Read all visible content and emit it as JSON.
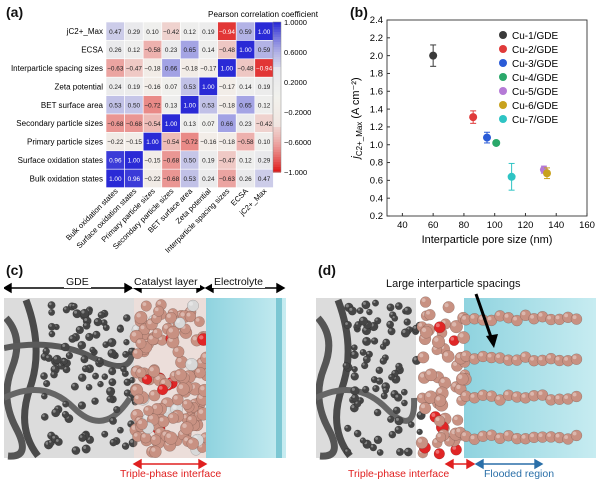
{
  "panels": {
    "a": "(a)",
    "b": "(b)",
    "c": "(c)",
    "d": "(d)"
  },
  "chart_data": [
    {
      "type": "heatmap",
      "title": "Pearson correlation coefficient",
      "row_labels": [
        "jC2+_Max",
        "ECSA",
        "Interparticle spacing sizes",
        "Zeta potential",
        "BET surface area",
        "Secondary particle sizes",
        "Primary particle sizes",
        "Surface oxidation states",
        "Bulk oxidation states"
      ],
      "col_labels": [
        "Bulk oxidation states",
        "Surface oxidation states",
        "Primary particle sizes",
        "Secondary particle sizes",
        "BET surface area",
        "Zeta potential",
        "Interparticle spacing sizes",
        "ECSA",
        "jC2+_Max"
      ],
      "values": [
        [
          0.47,
          0.29,
          0.1,
          -0.42,
          0.12,
          0.19,
          -0.94,
          0.59,
          1.0
        ],
        [
          0.26,
          0.12,
          -0.58,
          0.23,
          0.65,
          0.14,
          -0.48,
          1.0,
          0.59
        ],
        [
          -0.63,
          -0.47,
          -0.18,
          0.66,
          -0.18,
          -0.17,
          1.0,
          -0.48,
          -0.94
        ],
        [
          0.24,
          0.19,
          -0.16,
          0.07,
          0.53,
          1.0,
          -0.17,
          0.14,
          0.19
        ],
        [
          0.53,
          0.5,
          -0.72,
          0.13,
          1.0,
          0.53,
          -0.18,
          0.65,
          0.12
        ],
        [
          -0.68,
          -0.68,
          -0.54,
          1.0,
          0.13,
          0.07,
          0.66,
          0.23,
          -0.42
        ],
        [
          -0.22,
          -0.15,
          1.0,
          -0.54,
          -0.72,
          -0.16,
          -0.18,
          -0.58,
          0.1
        ],
        [
          0.96,
          1.0,
          -0.15,
          -0.68,
          0.5,
          0.19,
          -0.47,
          0.12,
          0.29
        ],
        [
          1.0,
          0.96,
          -0.22,
          -0.68,
          0.53,
          0.24,
          -0.63,
          0.26,
          0.47
        ]
      ],
      "colorbar_ticks": [
        "1.0000",
        "0.6000",
        "0.2000",
        "−0.2000",
        "−0.6000",
        "−1.000"
      ],
      "colors": {
        "positive": "#2a2ad6",
        "negative": "#e01b1b",
        "neutral": "#f2f2ed"
      }
    },
    {
      "type": "scatter",
      "xlabel": "Interparticle pore size (nm)",
      "ylabel_main": "j",
      "ylabel_sub": "C2+_Max",
      "ylabel_unit": " (A cm⁻²)",
      "xlim": [
        30,
        160
      ],
      "ylim": [
        0.2,
        2.4
      ],
      "xticks": [
        "40",
        "60",
        "80",
        "100",
        "120",
        "140",
        "160"
      ],
      "yticks": [
        "0.2",
        "0.4",
        "0.6",
        "0.8",
        "1.0",
        "1.2",
        "1.4",
        "1.6",
        "1.8",
        "2.0",
        "2.2",
        "2.4"
      ],
      "series": [
        {
          "name": "Cu-1/GDE",
          "x": 60,
          "y": 2.0,
          "err": 0.12,
          "color": "#3a3a3a"
        },
        {
          "name": "Cu-2/GDE",
          "x": 86,
          "y": 1.31,
          "err": 0.07,
          "color": "#e03a3a"
        },
        {
          "name": "Cu-3/GDE",
          "x": 95,
          "y": 1.08,
          "err": 0.06,
          "color": "#2a5bd7"
        },
        {
          "name": "Cu-4/GDE",
          "x": 101,
          "y": 1.02,
          "err": 0.02,
          "color": "#2aa86a"
        },
        {
          "name": "Cu-5/GDE",
          "x": 132,
          "y": 0.72,
          "err": 0.04,
          "color": "#b57ad6"
        },
        {
          "name": "Cu-6/GDE",
          "x": 134,
          "y": 0.68,
          "err": 0.06,
          "color": "#c8a21e"
        },
        {
          "name": "Cu-7/GDE",
          "x": 111,
          "y": 0.64,
          "err": 0.15,
          "color": "#2ec4c4"
        }
      ]
    }
  ],
  "panel_c": {
    "labels": {
      "gde": "GDE",
      "catalyst": "Catalyst layer",
      "electrolyte": "Electrolyte",
      "interface": "Triple-phase interface"
    }
  },
  "panel_d": {
    "labels": {
      "spacings": "Large interparticle spacings",
      "interface": "Triple-phase interface",
      "flooded": "Flooded region"
    }
  }
}
